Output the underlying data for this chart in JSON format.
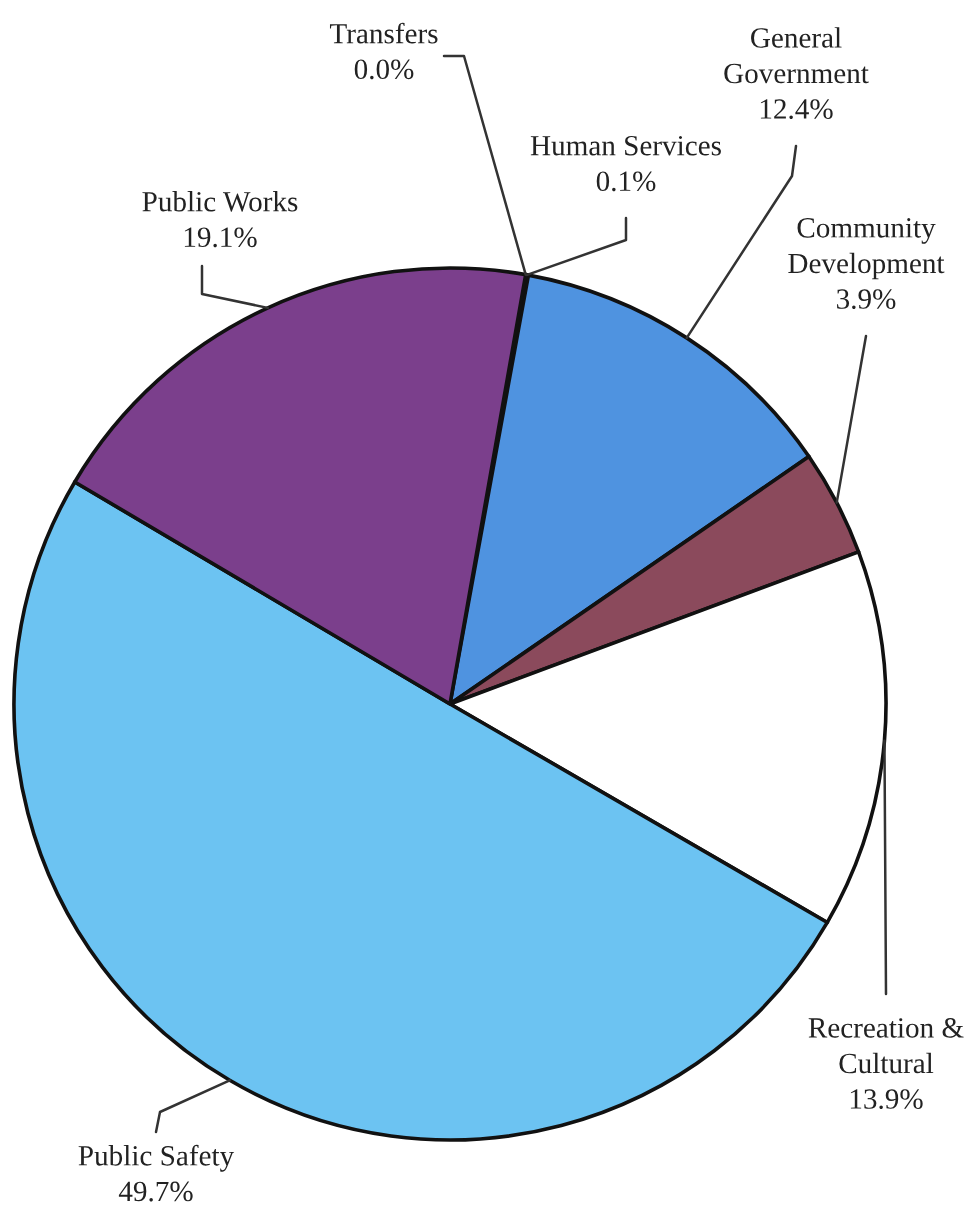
{
  "chart_data": {
    "type": "pie",
    "categories": [
      "Transfers",
      "Human Services",
      "General\nGovernment",
      "Community\nDevelopment",
      "Recreation &\nCultural",
      "Public Safety",
      "Public Works"
    ],
    "values": [
      0.0,
      0.1,
      12.4,
      3.9,
      13.9,
      49.7,
      19.1
    ],
    "value_labels": [
      "0.0%",
      "0.1%",
      "12.4%",
      "3.9%",
      "13.9%",
      "49.7%",
      "19.1%"
    ],
    "colors": [
      "#2f6f73",
      "#2f6f73",
      "#4f93e0",
      "#8b4a5c",
      "#ffffff",
      "#6cc3f2",
      "#7b3f8c"
    ]
  }
}
